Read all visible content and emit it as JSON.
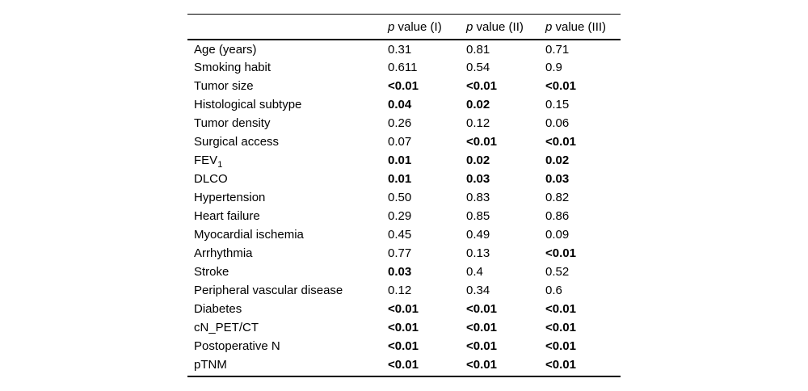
{
  "colors": {
    "text": "#000000",
    "background": "#ffffff",
    "rule": "#000000"
  },
  "table": {
    "header": {
      "row_label_column": "",
      "columns": [
        {
          "italic_prefix": "p",
          "label": " value (I)"
        },
        {
          "italic_prefix": "p",
          "label": " value (II)"
        },
        {
          "italic_prefix": "p",
          "label": " value (III)"
        }
      ]
    },
    "rows": [
      {
        "label": "Age (years)",
        "values": [
          {
            "text": "0.31",
            "bold": false
          },
          {
            "text": "0.81",
            "bold": false
          },
          {
            "text": "0.71",
            "bold": false
          }
        ]
      },
      {
        "label": "Smoking habit",
        "values": [
          {
            "text": "0.611",
            "bold": false
          },
          {
            "text": "0.54",
            "bold": false
          },
          {
            "text": "0.9",
            "bold": false
          }
        ]
      },
      {
        "label": "Tumor size",
        "values": [
          {
            "text": "<0.01",
            "bold": true
          },
          {
            "text": "<0.01",
            "bold": true
          },
          {
            "text": "<0.01",
            "bold": true
          }
        ]
      },
      {
        "label": "Histological subtype",
        "values": [
          {
            "text": "0.04",
            "bold": true
          },
          {
            "text": "0.02",
            "bold": true
          },
          {
            "text": "0.15",
            "bold": false
          }
        ]
      },
      {
        "label": "Tumor density",
        "values": [
          {
            "text": "0.26",
            "bold": false
          },
          {
            "text": "0.12",
            "bold": false
          },
          {
            "text": "0.06",
            "bold": false
          }
        ]
      },
      {
        "label": "Surgical access",
        "values": [
          {
            "text": "0.07",
            "bold": false
          },
          {
            "text": "<0.01",
            "bold": true
          },
          {
            "text": "<0.01",
            "bold": true
          }
        ]
      },
      {
        "label": "FEV",
        "label_sub": "1",
        "values": [
          {
            "text": "0.01",
            "bold": true
          },
          {
            "text": "0.02",
            "bold": true
          },
          {
            "text": "0.02",
            "bold": true
          }
        ]
      },
      {
        "label": "DLCO",
        "values": [
          {
            "text": "0.01",
            "bold": true
          },
          {
            "text": "0.03",
            "bold": true
          },
          {
            "text": "0.03",
            "bold": true
          }
        ]
      },
      {
        "label": "Hypertension",
        "values": [
          {
            "text": "0.50",
            "bold": false
          },
          {
            "text": "0.83",
            "bold": false
          },
          {
            "text": "0.82",
            "bold": false
          }
        ]
      },
      {
        "label": "Heart failure",
        "values": [
          {
            "text": "0.29",
            "bold": false
          },
          {
            "text": "0.85",
            "bold": false
          },
          {
            "text": "0.86",
            "bold": false
          }
        ]
      },
      {
        "label": "Myocardial ischemia",
        "values": [
          {
            "text": "0.45",
            "bold": false
          },
          {
            "text": "0.49",
            "bold": false
          },
          {
            "text": "0.09",
            "bold": false
          }
        ]
      },
      {
        "label": "Arrhythmia",
        "values": [
          {
            "text": "0.77",
            "bold": false
          },
          {
            "text": "0.13",
            "bold": false
          },
          {
            "text": "<0.01",
            "bold": true
          }
        ]
      },
      {
        "label": "Stroke",
        "values": [
          {
            "text": "0.03",
            "bold": true
          },
          {
            "text": "0.4",
            "bold": false
          },
          {
            "text": "0.52",
            "bold": false
          }
        ]
      },
      {
        "label": "Peripheral vascular disease",
        "values": [
          {
            "text": "0.12",
            "bold": false
          },
          {
            "text": "0.34",
            "bold": false
          },
          {
            "text": "0.6",
            "bold": false
          }
        ]
      },
      {
        "label": "Diabetes",
        "values": [
          {
            "text": "<0.01",
            "bold": true
          },
          {
            "text": "<0.01",
            "bold": true
          },
          {
            "text": "<0.01",
            "bold": true
          }
        ]
      },
      {
        "label": "cN_PET/CT",
        "values": [
          {
            "text": "<0.01",
            "bold": true
          },
          {
            "text": "<0.01",
            "bold": true
          },
          {
            "text": "<0.01",
            "bold": true
          }
        ]
      },
      {
        "label": "Postoperative N",
        "values": [
          {
            "text": "<0.01",
            "bold": true
          },
          {
            "text": "<0.01",
            "bold": true
          },
          {
            "text": "<0.01",
            "bold": true
          }
        ]
      },
      {
        "label": "pTNM",
        "values": [
          {
            "text": "<0.01",
            "bold": true
          },
          {
            "text": "<0.01",
            "bold": true
          },
          {
            "text": "<0.01",
            "bold": true
          }
        ]
      }
    ]
  }
}
